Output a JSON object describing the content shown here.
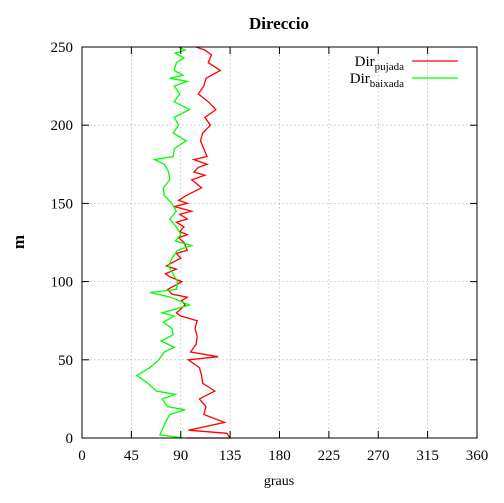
{
  "chart_data": {
    "type": "line",
    "title": "Direccio",
    "xlabel": "graus",
    "ylabel": "m",
    "xlim": [
      0,
      360
    ],
    "ylim": [
      0,
      250
    ],
    "xticks": [
      0,
      45,
      90,
      135,
      180,
      225,
      270,
      315,
      360
    ],
    "yticks": [
      0,
      50,
      100,
      150,
      200,
      250
    ],
    "grid": true,
    "legend_position": "top-right",
    "series": [
      {
        "name_main": "Dir",
        "name_sub": "pujada",
        "color": "#ff0000",
        "points": [
          [
            95,
            0
          ],
          [
            135,
            0
          ],
          [
            132,
            3
          ],
          [
            97,
            5
          ],
          [
            130,
            10
          ],
          [
            111,
            15
          ],
          [
            113,
            20
          ],
          [
            107,
            25
          ],
          [
            121,
            30
          ],
          [
            110,
            35
          ],
          [
            109,
            40
          ],
          [
            107,
            45
          ],
          [
            97,
            50
          ],
          [
            124,
            52
          ],
          [
            99,
            55
          ],
          [
            104,
            60
          ],
          [
            105,
            65
          ],
          [
            103,
            70
          ],
          [
            105,
            75
          ],
          [
            90,
            78
          ],
          [
            86,
            80
          ],
          [
            94,
            85
          ],
          [
            91,
            88
          ],
          [
            96,
            90
          ],
          [
            82,
            92
          ],
          [
            78,
            95
          ],
          [
            86,
            98
          ],
          [
            91,
            100
          ],
          [
            80,
            103
          ],
          [
            76,
            105
          ],
          [
            86,
            108
          ],
          [
            77,
            110
          ],
          [
            82,
            112
          ],
          [
            90,
            115
          ],
          [
            86,
            118
          ],
          [
            96,
            120
          ],
          [
            93,
            125
          ],
          [
            88,
            128
          ],
          [
            96,
            130
          ],
          [
            89,
            132
          ],
          [
            93,
            135
          ],
          [
            86,
            138
          ],
          [
            96,
            140
          ],
          [
            89,
            143
          ],
          [
            100,
            145
          ],
          [
            84,
            148
          ],
          [
            96,
            150
          ],
          [
            88,
            152
          ],
          [
            95,
            155
          ],
          [
            109,
            160
          ],
          [
            100,
            165
          ],
          [
            112,
            168
          ],
          [
            102,
            170
          ],
          [
            106,
            173
          ],
          [
            114,
            175
          ],
          [
            102,
            178
          ],
          [
            114,
            180
          ],
          [
            111,
            185
          ],
          [
            108,
            190
          ],
          [
            110,
            195
          ],
          [
            117,
            200
          ],
          [
            112,
            205
          ],
          [
            122,
            210
          ],
          [
            115,
            215
          ],
          [
            106,
            220
          ],
          [
            111,
            225
          ],
          [
            113,
            230
          ],
          [
            126,
            235
          ],
          [
            115,
            240
          ],
          [
            118,
            245
          ],
          [
            112,
            248
          ],
          [
            104,
            250
          ]
        ]
      },
      {
        "name_main": "Dir",
        "name_sub": "baixada",
        "color": "#00ff00",
        "points": [
          [
            93,
            0
          ],
          [
            71,
            2
          ],
          [
            73,
            5
          ],
          [
            76,
            10
          ],
          [
            80,
            15
          ],
          [
            94,
            18
          ],
          [
            78,
            20
          ],
          [
            73,
            25
          ],
          [
            85,
            28
          ],
          [
            68,
            30
          ],
          [
            60,
            35
          ],
          [
            50,
            40
          ],
          [
            62,
            45
          ],
          [
            70,
            50
          ],
          [
            75,
            55
          ],
          [
            84,
            58
          ],
          [
            72,
            62
          ],
          [
            83,
            66
          ],
          [
            82,
            70
          ],
          [
            74,
            74
          ],
          [
            84,
            78
          ],
          [
            73,
            80
          ],
          [
            98,
            85
          ],
          [
            81,
            90
          ],
          [
            62,
            93
          ],
          [
            86,
            95
          ],
          [
            87,
            100
          ],
          [
            83,
            105
          ],
          [
            79,
            110
          ],
          [
            82,
            115
          ],
          [
            87,
            120
          ],
          [
            100,
            123
          ],
          [
            85,
            126
          ],
          [
            90,
            130
          ],
          [
            86,
            135
          ],
          [
            80,
            140
          ],
          [
            86,
            145
          ],
          [
            82,
            150
          ],
          [
            75,
            155
          ],
          [
            74,
            160
          ],
          [
            80,
            165
          ],
          [
            79,
            170
          ],
          [
            75,
            175
          ],
          [
            66,
            178
          ],
          [
            83,
            180
          ],
          [
            84,
            185
          ],
          [
            95,
            190
          ],
          [
            83,
            195
          ],
          [
            88,
            200
          ],
          [
            84,
            205
          ],
          [
            98,
            210
          ],
          [
            84,
            215
          ],
          [
            89,
            220
          ],
          [
            84,
            225
          ],
          [
            96,
            228
          ],
          [
            80,
            230
          ],
          [
            92,
            232
          ],
          [
            84,
            235
          ],
          [
            86,
            240
          ],
          [
            93,
            243
          ],
          [
            85,
            246
          ],
          [
            94,
            248
          ],
          [
            88,
            250
          ]
        ]
      }
    ]
  }
}
